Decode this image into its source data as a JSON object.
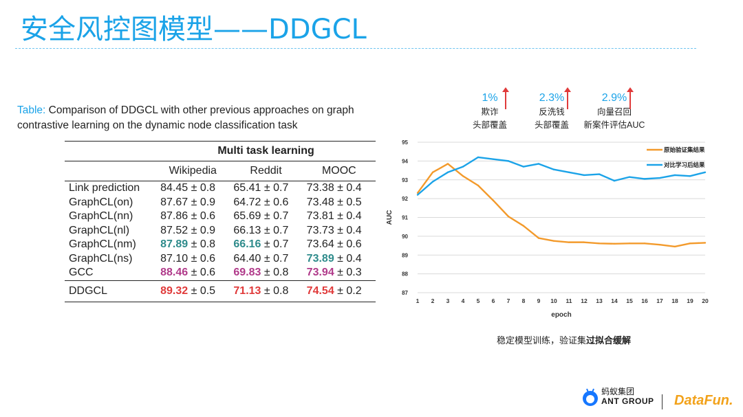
{
  "slide": {
    "title": "安全风控图模型——DDGCL",
    "caption_lead": "Table:",
    "caption_rest": " Comparison of DDGCL with other previous approaches on graph contrastive learning on the dynamic node classification task",
    "note_prefix": "稳定模型训练，验证集",
    "note_bold": "过拟合缓解"
  },
  "table": {
    "group_header": "Multi task learning",
    "columns": [
      "Wikipedia",
      "Reddit",
      "MOOC"
    ],
    "rows": [
      {
        "method": "Link prediction",
        "cells": [
          {
            "v": "84.45",
            "e": "± 0.8",
            "s": ""
          },
          {
            "v": "65.41",
            "e": "± 0.7",
            "s": ""
          },
          {
            "v": "73.38",
            "e": "± 0.4",
            "s": ""
          }
        ]
      },
      {
        "method": "GraphCL(on)",
        "cells": [
          {
            "v": "87.67",
            "e": "± 0.9",
            "s": ""
          },
          {
            "v": "64.72",
            "e": "± 0.6",
            "s": ""
          },
          {
            "v": "73.48",
            "e": "± 0.5",
            "s": ""
          }
        ]
      },
      {
        "method": "GraphCL(nn)",
        "cells": [
          {
            "v": "87.86",
            "e": "± 0.6",
            "s": ""
          },
          {
            "v": "65.69",
            "e": "± 0.7",
            "s": ""
          },
          {
            "v": "73.81",
            "e": "± 0.4",
            "s": ""
          }
        ]
      },
      {
        "method": "GraphCL(nl)",
        "cells": [
          {
            "v": "87.52",
            "e": "± 0.9",
            "s": ""
          },
          {
            "v": "66.13",
            "e": "± 0.7",
            "s": ""
          },
          {
            "v": "73.73",
            "e": "± 0.4",
            "s": ""
          }
        ]
      },
      {
        "method": "GraphCL(nm)",
        "cells": [
          {
            "v": "87.89",
            "e": "± 0.8",
            "s": "teal"
          },
          {
            "v": "66.16",
            "e": "± 0.7",
            "s": "teal"
          },
          {
            "v": "73.64",
            "e": "± 0.6",
            "s": ""
          }
        ]
      },
      {
        "method": "GraphCL(ns)",
        "cells": [
          {
            "v": "87.10",
            "e": "± 0.6",
            "s": ""
          },
          {
            "v": "64.40",
            "e": "± 0.7",
            "s": ""
          },
          {
            "v": "73.89",
            "e": "± 0.4",
            "s": "teal"
          }
        ]
      },
      {
        "method": "GCC",
        "cells": [
          {
            "v": "88.46",
            "e": "± 0.6",
            "s": "mag"
          },
          {
            "v": "69.83",
            "e": "± 0.8",
            "s": "mag"
          },
          {
            "v": "73.94",
            "e": "± 0.3",
            "s": "mag"
          }
        ]
      }
    ],
    "ours": {
      "method": "DDGCL",
      "cells": [
        {
          "v": "89.32",
          "e": "± 0.5",
          "s": "red"
        },
        {
          "v": "71.13",
          "e": "± 0.8",
          "s": "red"
        },
        {
          "v": "74.54",
          "e": "± 0.2",
          "s": "red"
        }
      ]
    },
    "colors": {
      "teal": "#2e8b8b",
      "mag": "#b03a8a",
      "red": "#e03a3a"
    }
  },
  "gains": [
    {
      "pct": "1%",
      "l1": "欺诈",
      "l2": "头部覆盖"
    },
    {
      "pct": "2.3%",
      "l1": "反洗钱",
      "l2": "头部覆盖"
    },
    {
      "pct": "2.9%",
      "l1": "向量召回",
      "l2": "新案件评估AUC"
    }
  ],
  "chart_data": {
    "type": "line",
    "xlabel": "epoch",
    "ylabel": "AUC",
    "x": [
      1,
      2,
      3,
      4,
      5,
      6,
      7,
      8,
      9,
      10,
      11,
      12,
      13,
      14,
      15,
      16,
      17,
      18,
      19,
      20
    ],
    "ylim": [
      87,
      95
    ],
    "yticks": [
      87,
      88,
      89,
      90,
      91,
      92,
      93,
      94,
      95
    ],
    "grid": true,
    "legend": "top-right",
    "series": [
      {
        "name": "原始验证集结果",
        "color": "#f39a2b",
        "values": [
          92.3,
          93.4,
          93.85,
          93.2,
          92.7,
          91.9,
          91.05,
          90.55,
          89.9,
          89.75,
          89.68,
          89.68,
          89.62,
          89.6,
          89.62,
          89.62,
          89.55,
          89.45,
          89.62,
          89.65
        ]
      },
      {
        "name": "对比学习后结果",
        "color": "#1ba3e8",
        "values": [
          92.2,
          92.9,
          93.4,
          93.7,
          94.2,
          94.1,
          94.0,
          93.7,
          93.85,
          93.55,
          93.4,
          93.25,
          93.3,
          92.95,
          93.15,
          93.05,
          93.1,
          93.25,
          93.2,
          93.4
        ]
      }
    ]
  },
  "brand": {
    "ant_cn": "蚂蚁集团",
    "ant_en": "ANT GROUP",
    "datafun": "DataFun."
  }
}
